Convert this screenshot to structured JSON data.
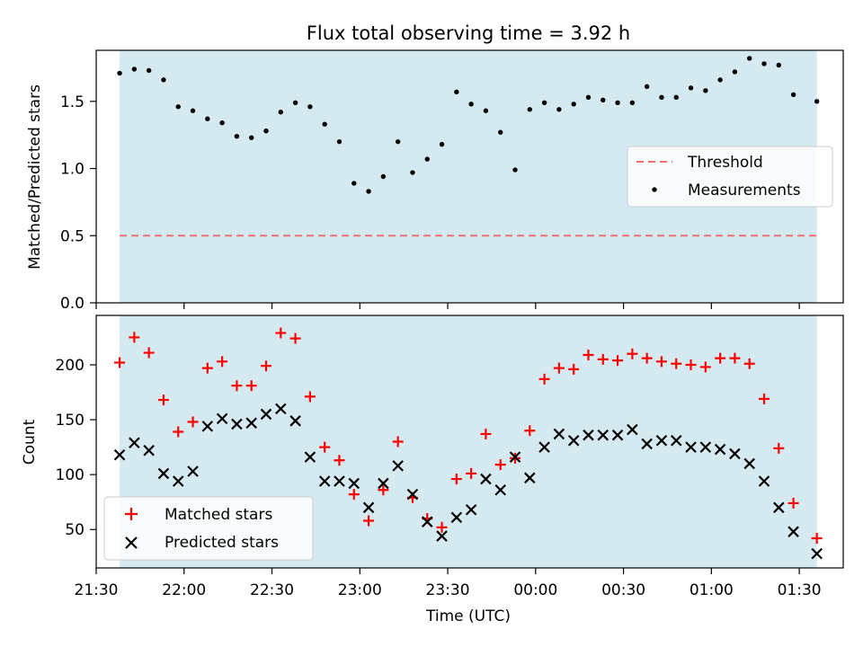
{
  "chart_data": [
    {
      "type": "scatter",
      "title": "Flux total observing time = 3.92 h",
      "xlabel": "",
      "ylabel": "Matched/Predicted stars",
      "ylim": [
        0,
        1.88
      ],
      "yticks": [
        0.0,
        0.5,
        1.0,
        1.5
      ],
      "ytick_labels": [
        "0.0",
        "0.5",
        "1.0",
        "1.5"
      ],
      "xtick_labels_visible": false,
      "observing_window_color": "#d4eaf0",
      "threshold": {
        "name": "Threshold",
        "value": 0.5,
        "color": "#f07070",
        "style": "dashed"
      },
      "legend": {
        "placement": "center-right",
        "entries": [
          "Threshold",
          "Measurements"
        ]
      },
      "series": [
        {
          "name": "Measurements",
          "marker": "dot",
          "color": "#000000",
          "y": [
            1.71,
            1.74,
            1.73,
            1.66,
            1.46,
            1.43,
            1.37,
            1.34,
            1.24,
            1.23,
            1.28,
            1.42,
            1.49,
            1.46,
            1.33,
            1.2,
            0.89,
            0.83,
            0.94,
            1.2,
            0.97,
            1.07,
            1.18,
            1.57,
            1.48,
            1.43,
            1.27,
            0.99,
            1.44,
            1.49,
            1.44,
            1.48,
            1.53,
            1.51,
            1.49,
            1.49,
            1.61,
            1.53,
            1.53,
            1.6,
            1.58,
            1.66,
            1.72,
            1.82,
            1.78,
            1.77,
            1.55,
            1.5
          ]
        }
      ]
    },
    {
      "type": "scatter",
      "xlabel": "Time (UTC)",
      "ylabel": "Count",
      "ylim": [
        15,
        245
      ],
      "yticks": [
        50,
        100,
        150,
        200
      ],
      "ytick_labels": [
        "50",
        "100",
        "150",
        "200"
      ],
      "xlim": [
        "21:30",
        "01:45"
      ],
      "xtick_labels": [
        "21:30",
        "22:00",
        "22:30",
        "23:00",
        "23:30",
        "00:00",
        "00:30",
        "01:00",
        "01:30"
      ],
      "observing_window": [
        "21:38",
        "01:36"
      ],
      "observing_window_color": "#d4eaf0",
      "legend": {
        "placement": "lower-left",
        "entries": [
          "Matched stars",
          "Predicted stars"
        ]
      },
      "x": [
        "21:38",
        "21:43",
        "21:48",
        "21:53",
        "21:58",
        "22:03",
        "22:08",
        "22:13",
        "22:18",
        "22:23",
        "22:28",
        "22:33",
        "22:38",
        "22:43",
        "22:48",
        "22:53",
        "22:58",
        "23:03",
        "23:08",
        "23:13",
        "23:18",
        "23:23",
        "23:28",
        "23:33",
        "23:38",
        "23:43",
        "23:48",
        "23:53",
        "23:58",
        "00:03",
        "00:08",
        "00:13",
        "00:18",
        "00:23",
        "00:28",
        "00:33",
        "00:38",
        "00:43",
        "00:48",
        "00:53",
        "00:58",
        "01:03",
        "01:08",
        "01:13",
        "01:18",
        "01:23",
        "01:28",
        "01:36"
      ],
      "series": [
        {
          "name": "Matched stars",
          "marker": "plus",
          "color": "#ff0000",
          "values": [
            202,
            225,
            211,
            168,
            139,
            148,
            197,
            203,
            181,
            181,
            199,
            229,
            224,
            171,
            125,
            113,
            82,
            58,
            86,
            130,
            79,
            60,
            52,
            96,
            101,
            137,
            109,
            115,
            140,
            187,
            197,
            196,
            209,
            205,
            204,
            210,
            206,
            203,
            201,
            200,
            198,
            206,
            206,
            201,
            169,
            124,
            74,
            42
          ]
        },
        {
          "name": "Predicted stars",
          "marker": "x",
          "color": "#000000",
          "values": [
            118,
            129,
            122,
            101,
            94,
            103,
            144,
            151,
            146,
            147,
            155,
            160,
            149,
            116,
            94,
            94,
            92,
            70,
            92,
            108,
            82,
            57,
            44,
            61,
            68,
            96,
            86,
            116,
            97,
            125,
            137,
            131,
            136,
            136,
            136,
            141,
            128,
            131,
            131,
            125,
            125,
            123,
            119,
            110,
            94,
            70,
            48,
            28
          ]
        }
      ]
    }
  ]
}
